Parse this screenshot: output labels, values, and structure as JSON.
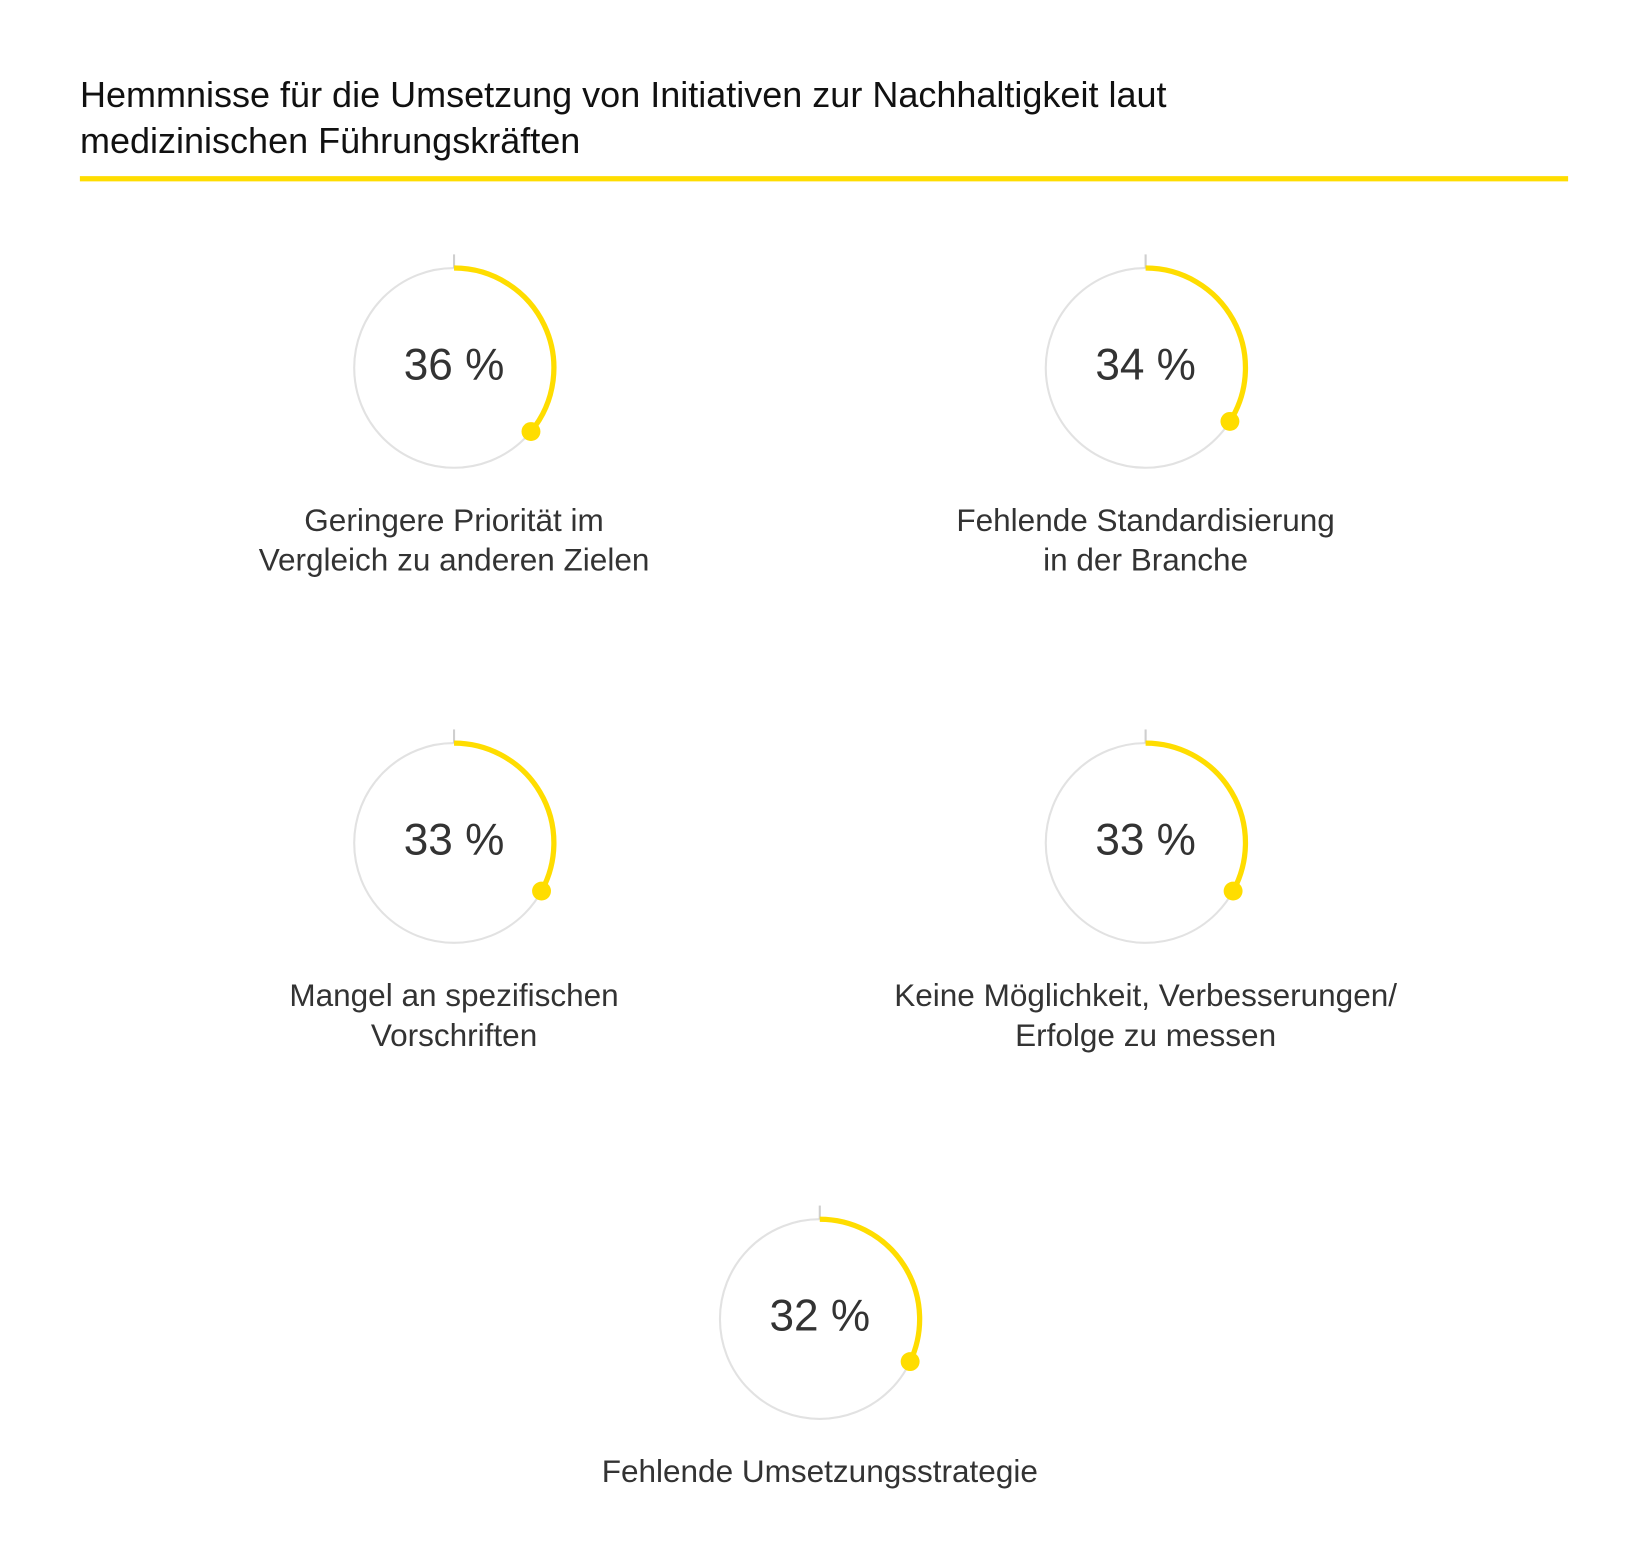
{
  "chart_data": {
    "type": "gauge",
    "title": "Hemmnisse für die Umsetzung von Initiativen zur Nachhaltigkeit laut medizinischen Führungskräften",
    "categories": [
      [
        "Geringere Priorität im",
        "Vergleich zu anderen Zielen"
      ],
      [
        "Fehlende Standardisierung",
        "in der Branche"
      ],
      [
        "Mangel an spezifischen",
        "Vorschriften"
      ],
      [
        "Keine Möglichkeit, Verbesserungen/",
        "Erfolge zu messen"
      ],
      [
        "Fehlende Umsetzungsstrategie"
      ]
    ],
    "values": [
      36,
      34,
      33,
      33,
      32
    ],
    "value_labels": [
      "36 %",
      "34 %",
      "33 %",
      "33 %",
      "32 %"
    ],
    "ylim": [
      0,
      100
    ],
    "color": "#ffdd00",
    "track_color": "#e2e2e2"
  }
}
